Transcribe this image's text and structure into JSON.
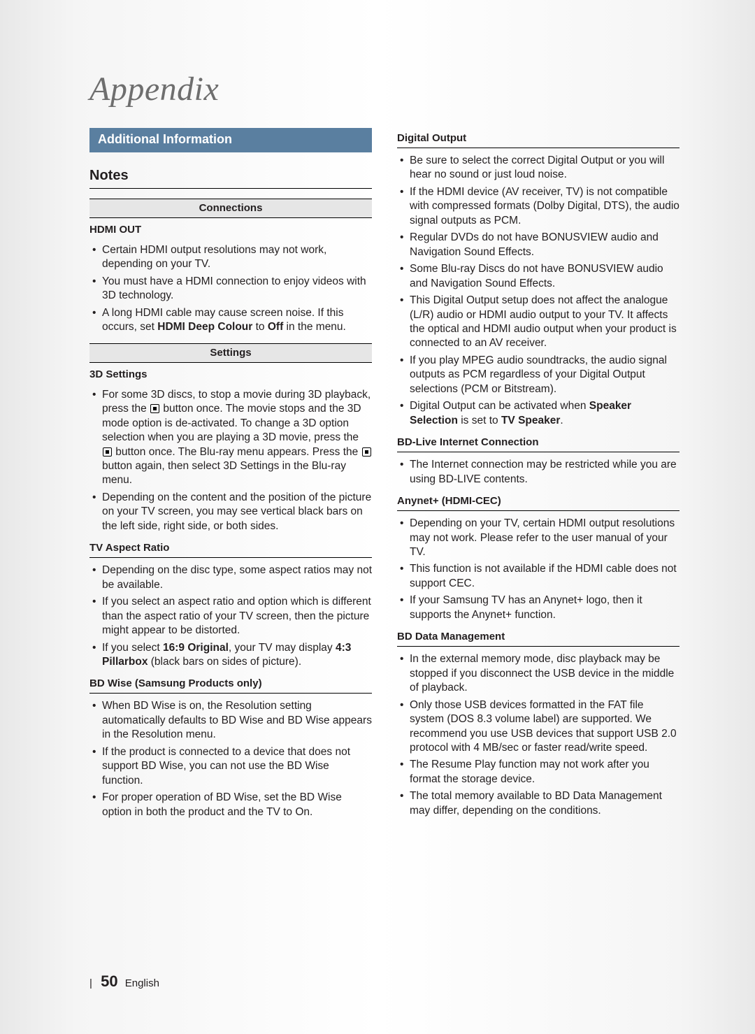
{
  "chapter_title": "Appendix",
  "section_heading": "Additional Information",
  "notes_label": "Notes",
  "left": {
    "connections_header": "Connections",
    "hdmi_out": {
      "title": "HDMI OUT",
      "items": [
        "Certain HDMI output resolutions may not work, depending on your TV.",
        "You must have a HDMI connection to enjoy videos with 3D technology."
      ],
      "item_deep_colour_pre": "A long HDMI cable may cause screen noise. If this occurs, set ",
      "item_deep_colour_b": "HDMI Deep Colour",
      "item_deep_colour_mid": " to ",
      "item_deep_colour_b2": "Off",
      "item_deep_colour_post": " in the menu."
    },
    "settings_header": "Settings",
    "three_d": {
      "title": "3D Settings",
      "item1_a": "For some 3D discs, to stop a movie during 3D playback, press the ",
      "item1_b": " button once. The movie stops and the 3D mode option is de-activated. To change a 3D option selection when you are playing a 3D movie, press the ",
      "item1_c": " button once. The Blu-ray menu appears. Press the ",
      "item1_d": " button again, then select 3D Settings in the Blu-ray menu.",
      "item2": "Depending on the content and the position of the picture on your TV screen, you may see vertical black bars on the left side, right side, or both sides."
    },
    "aspect": {
      "title": "TV Aspect Ratio",
      "item1": "Depending on the disc type, some aspect ratios may not be available.",
      "item2": "If you select an aspect ratio and option which is different than the aspect ratio of your TV screen, then the picture might appear to be distorted.",
      "item3_pre": "If you select ",
      "item3_b1": "16:9 Original",
      "item3_mid": ", your TV may display ",
      "item3_b2": "4:3 Pillarbox",
      "item3_post": " (black bars on sides of picture)."
    },
    "bdwise": {
      "title": "BD Wise (Samsung Products only)",
      "item1": "When BD Wise is on, the Resolution setting automatically defaults to BD Wise and BD Wise appears in the Resolution menu.",
      "item2": "If the product is connected to a device that does not support BD Wise, you can not use the BD Wise function.",
      "item3": "For proper operation of BD Wise, set the BD Wise option in both the product and the TV to On."
    }
  },
  "right": {
    "digital": {
      "title": "Digital Output",
      "item1": "Be sure to select the correct Digital Output or you will hear no sound or just loud noise.",
      "item2": "If the HDMI device (AV receiver, TV) is not compatible with compressed formats (Dolby Digital, DTS), the audio signal outputs as PCM.",
      "item3": "Regular DVDs do not have BONUSVIEW audio and Navigation Sound Effects.",
      "item4": "Some Blu-ray Discs do not have BONUSVIEW audio and Navigation Sound Effects.",
      "item5": "This Digital Output setup does not affect the analogue (L/R) audio or HDMI audio output to your TV. It affects the optical and HDMI audio output when your product is connected to an AV receiver.",
      "item6": "If you play MPEG audio soundtracks, the audio signal outputs as PCM regardless of your Digital Output selections (PCM or Bitstream).",
      "item7_pre": "Digital Output can be activated when ",
      "item7_b1": "Speaker Selection",
      "item7_mid": " is set to ",
      "item7_b2": "TV Speaker",
      "item7_post": "."
    },
    "bdlive": {
      "title": "BD-Live Internet Connection",
      "item1": "The Internet connection may be restricted while you are using BD-LIVE contents."
    },
    "anynet": {
      "title": "Anynet+ (HDMI-CEC)",
      "item1": "Depending on your TV, certain HDMI output resolutions may not work. Please refer to the user manual of your TV.",
      "item2": "This function is not available if the HDMI cable does not support CEC.",
      "item3": "If your Samsung TV has an Anynet+ logo, then it supports the Anynet+ function."
    },
    "bddata": {
      "title": "BD Data Management",
      "item1": "In the external memory mode, disc playback may be stopped if you disconnect the USB device in the middle of playback.",
      "item2": "Only those USB devices formatted in the FAT file system (DOS 8.3 volume label) are supported. We recommend you use USB devices that support USB 2.0 protocol with 4 MB/sec or faster read/write speed.",
      "item3": "The Resume Play function may not work after you format the storage device.",
      "item4": "The total memory available to BD Data Management may differ, depending on the conditions."
    }
  },
  "footer": {
    "page_number": "50",
    "language": "English"
  }
}
